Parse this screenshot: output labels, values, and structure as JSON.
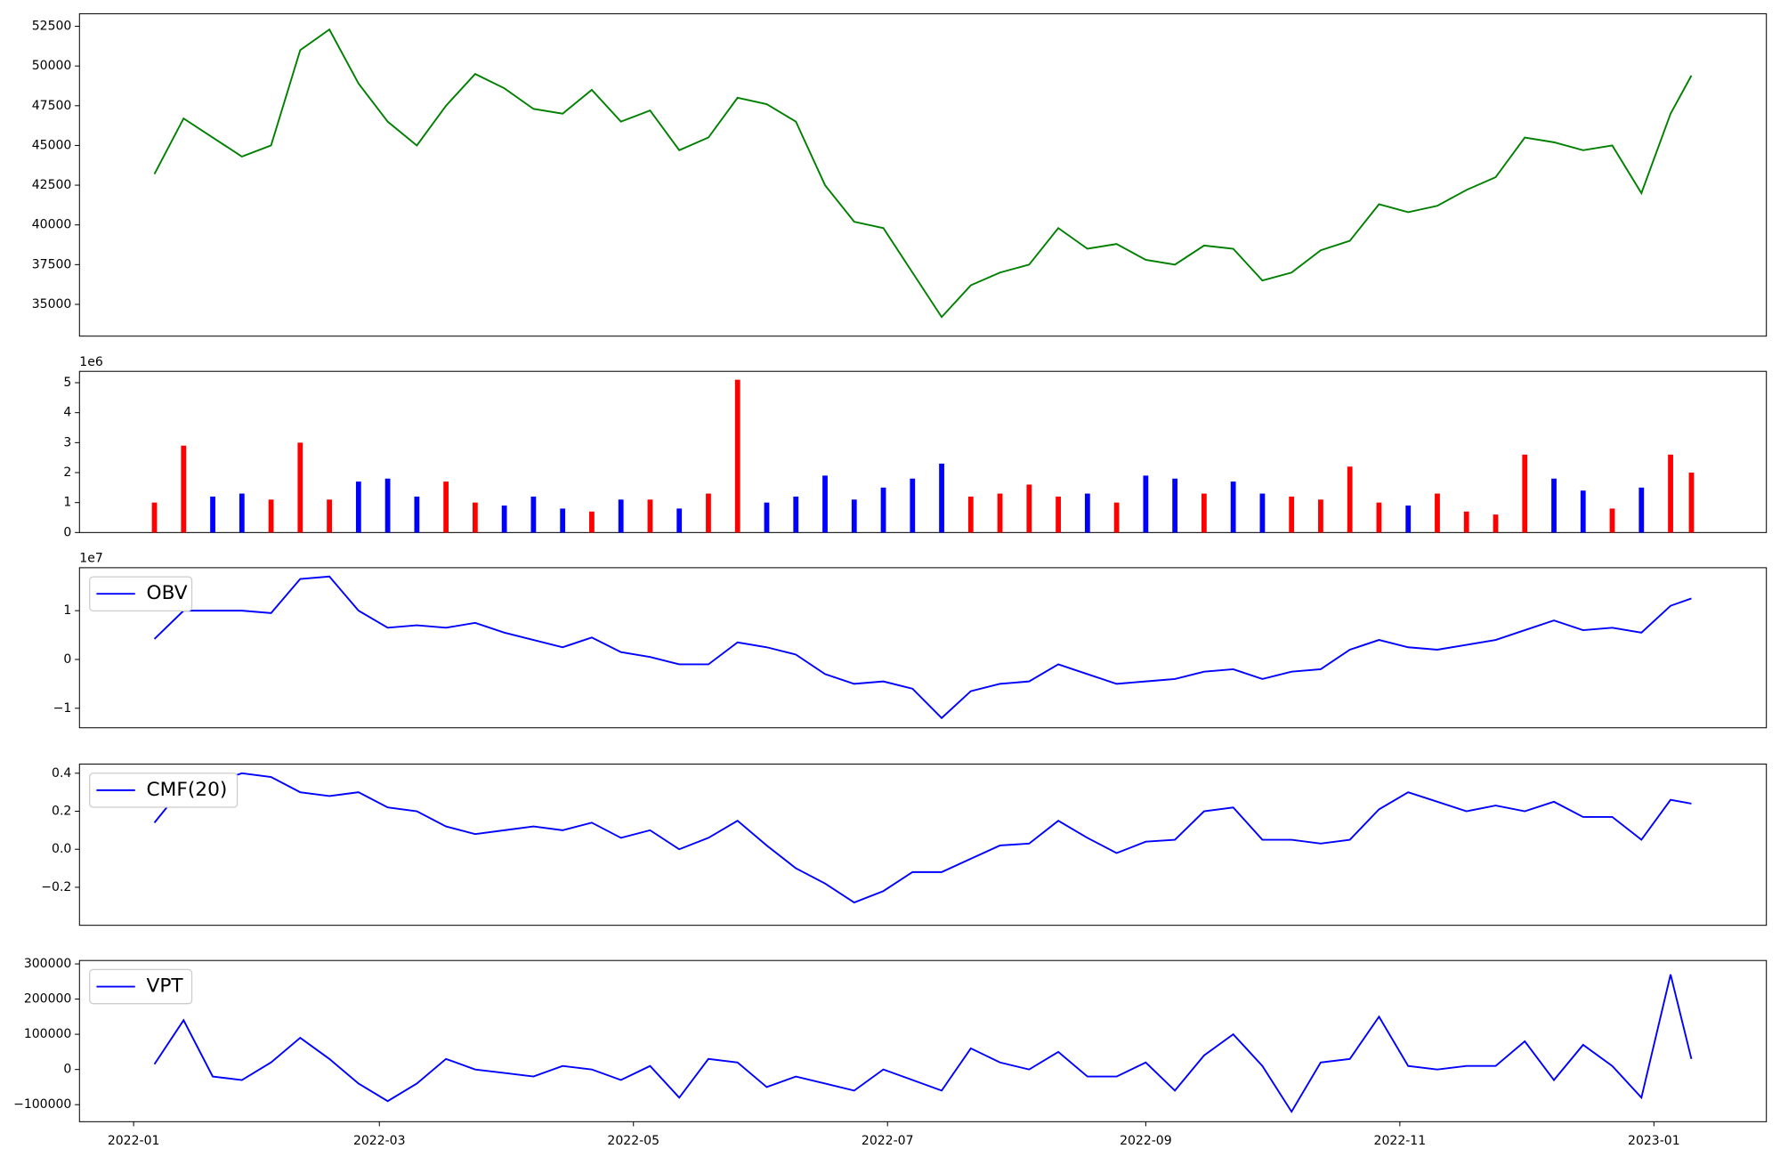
{
  "chart_data": [
    {
      "type": "line",
      "color": "#008000",
      "x": [
        "2022-01-06",
        "2022-01-13",
        "2022-01-20",
        "2022-01-27",
        "2022-02-03",
        "2022-02-10",
        "2022-02-17",
        "2022-02-24",
        "2022-03-03",
        "2022-03-10",
        "2022-03-17",
        "2022-03-24",
        "2022-03-31",
        "2022-04-07",
        "2022-04-14",
        "2022-04-21",
        "2022-04-28",
        "2022-05-05",
        "2022-05-12",
        "2022-05-19",
        "2022-05-26",
        "2022-06-02",
        "2022-06-09",
        "2022-06-16",
        "2022-06-23",
        "2022-06-30",
        "2022-07-07",
        "2022-07-14",
        "2022-07-21",
        "2022-07-28",
        "2022-08-04",
        "2022-08-11",
        "2022-08-18",
        "2022-08-25",
        "2022-09-01",
        "2022-09-08",
        "2022-09-15",
        "2022-09-22",
        "2022-09-29",
        "2022-10-06",
        "2022-10-13",
        "2022-10-20",
        "2022-10-27",
        "2022-11-03",
        "2022-11-10",
        "2022-11-17",
        "2022-11-24",
        "2022-12-01",
        "2022-12-08",
        "2022-12-15",
        "2022-12-22",
        "2022-12-29",
        "2023-01-05",
        "2023-01-10"
      ],
      "values": [
        43200,
        46700,
        45500,
        44300,
        45000,
        51000,
        52300,
        48900,
        46500,
        45000,
        47500,
        49500,
        48600,
        47300,
        47000,
        48500,
        46500,
        47200,
        44700,
        45500,
        48000,
        47600,
        46500,
        42500,
        40200,
        39800,
        37000,
        34200,
        36200,
        37000,
        37500,
        39800,
        38500,
        38800,
        37800,
        37500,
        38700,
        38500,
        36500,
        37000,
        38400,
        39000,
        41300,
        40800,
        41200,
        42200,
        43000,
        45500,
        45200,
        44700,
        45000,
        42000,
        47000,
        49400
      ],
      "xlim": [
        "2021-12-19",
        "2023-01-28"
      ],
      "ylim": [
        33000,
        53290
      ],
      "yticks": [
        35000,
        37500,
        40000,
        42500,
        45000,
        47500,
        50000,
        52500
      ]
    },
    {
      "type": "bar",
      "offset_label": "1e6",
      "x": [
        "2022-01-06",
        "2022-01-13",
        "2022-01-20",
        "2022-01-27",
        "2022-02-03",
        "2022-02-10",
        "2022-02-17",
        "2022-02-24",
        "2022-03-03",
        "2022-03-10",
        "2022-03-17",
        "2022-03-24",
        "2022-03-31",
        "2022-04-07",
        "2022-04-14",
        "2022-04-21",
        "2022-04-28",
        "2022-05-05",
        "2022-05-12",
        "2022-05-19",
        "2022-05-26",
        "2022-06-02",
        "2022-06-09",
        "2022-06-16",
        "2022-06-23",
        "2022-06-30",
        "2022-07-07",
        "2022-07-14",
        "2022-07-21",
        "2022-07-28",
        "2022-08-04",
        "2022-08-11",
        "2022-08-18",
        "2022-08-25",
        "2022-09-01",
        "2022-09-08",
        "2022-09-15",
        "2022-09-22",
        "2022-09-29",
        "2022-10-06",
        "2022-10-13",
        "2022-10-20",
        "2022-10-27",
        "2022-11-03",
        "2022-11-10",
        "2022-11-17",
        "2022-11-24",
        "2022-12-01",
        "2022-12-08",
        "2022-12-15",
        "2022-12-22",
        "2022-12-29",
        "2023-01-05",
        "2023-01-10"
      ],
      "values": [
        1.0,
        2.9,
        1.2,
        1.3,
        1.1,
        3.0,
        1.1,
        1.7,
        1.8,
        1.2,
        1.7,
        1.0,
        0.9,
        1.2,
        0.8,
        0.7,
        1.1,
        1.1,
        0.8,
        1.3,
        5.1,
        1.0,
        1.2,
        1.9,
        1.1,
        1.5,
        1.8,
        2.3,
        1.2,
        1.3,
        1.6,
        1.2,
        1.3,
        1.0,
        1.9,
        1.8,
        1.3,
        1.7,
        1.3,
        1.2,
        1.1,
        2.2,
        1.0,
        0.9,
        1.3,
        0.7,
        0.6,
        2.6,
        1.8,
        1.4,
        0.8,
        1.5,
        2.6,
        2.0
      ],
      "colors": [
        "#ff0000",
        "#ff0000",
        "#0000ff",
        "#0000ff",
        "#ff0000",
        "#ff0000",
        "#ff0000",
        "#0000ff",
        "#0000ff",
        "#0000ff",
        "#ff0000",
        "#ff0000",
        "#0000ff",
        "#0000ff",
        "#0000ff",
        "#ff0000",
        "#0000ff",
        "#ff0000",
        "#0000ff",
        "#ff0000",
        "#ff0000",
        "#0000ff",
        "#0000ff",
        "#0000ff",
        "#0000ff",
        "#0000ff",
        "#0000ff",
        "#0000ff",
        "#ff0000",
        "#ff0000",
        "#ff0000",
        "#ff0000",
        "#0000ff",
        "#ff0000",
        "#0000ff",
        "#0000ff",
        "#ff0000",
        "#0000ff",
        "#0000ff",
        "#ff0000",
        "#ff0000",
        "#ff0000",
        "#ff0000",
        "#0000ff",
        "#ff0000",
        "#ff0000",
        "#ff0000",
        "#ff0000",
        "#0000ff",
        "#0000ff",
        "#ff0000",
        "#0000ff",
        "#ff0000",
        "#ff0000"
      ],
      "xlim": [
        "2021-12-19",
        "2023-01-28"
      ],
      "ylim": [
        0,
        5.38
      ],
      "yticks": [
        0,
        1,
        2,
        3,
        4,
        5
      ]
    },
    {
      "type": "line",
      "offset_label": "1e7",
      "legend": "upper left",
      "x": [
        "2022-01-06",
        "2022-01-13",
        "2022-01-20",
        "2022-01-27",
        "2022-02-03",
        "2022-02-10",
        "2022-02-17",
        "2022-02-24",
        "2022-03-03",
        "2022-03-10",
        "2022-03-17",
        "2022-03-24",
        "2022-03-31",
        "2022-04-07",
        "2022-04-14",
        "2022-04-21",
        "2022-04-28",
        "2022-05-05",
        "2022-05-12",
        "2022-05-19",
        "2022-05-26",
        "2022-06-02",
        "2022-06-09",
        "2022-06-16",
        "2022-06-23",
        "2022-06-30",
        "2022-07-07",
        "2022-07-14",
        "2022-07-21",
        "2022-07-28",
        "2022-08-04",
        "2022-08-11",
        "2022-08-18",
        "2022-08-25",
        "2022-09-01",
        "2022-09-08",
        "2022-09-15",
        "2022-09-22",
        "2022-09-29",
        "2022-10-06",
        "2022-10-13",
        "2022-10-20",
        "2022-10-27",
        "2022-11-03",
        "2022-11-10",
        "2022-11-17",
        "2022-11-24",
        "2022-12-01",
        "2022-12-08",
        "2022-12-15",
        "2022-12-22",
        "2022-12-29",
        "2023-01-05",
        "2023-01-10"
      ],
      "series": [
        {
          "name": "OBV",
          "color": "#0000ff",
          "values": [
            0.42,
            1.0,
            1.0,
            1.0,
            0.95,
            1.65,
            1.7,
            1.0,
            0.65,
            0.7,
            0.65,
            0.75,
            0.55,
            0.4,
            0.25,
            0.45,
            0.15,
            0.05,
            -0.1,
            -0.1,
            0.35,
            0.25,
            0.1,
            -0.3,
            -0.5,
            -0.45,
            -0.6,
            -1.2,
            -0.65,
            -0.5,
            -0.45,
            -0.1,
            -0.3,
            -0.5,
            -0.45,
            -0.4,
            -0.25,
            -0.2,
            -0.4,
            -0.25,
            -0.2,
            0.2,
            0.4,
            0.25,
            0.2,
            0.3,
            0.4,
            0.6,
            0.8,
            0.6,
            0.65,
            0.55,
            1.1,
            1.25
          ]
        }
      ],
      "xlim": [
        "2021-12-19",
        "2023-01-28"
      ],
      "ylim": [
        -1.4,
        1.88
      ],
      "yticks": [
        {
          "value": -1,
          "label": "−1"
        },
        0,
        1
      ]
    },
    {
      "type": "line",
      "legend": "upper left",
      "x": [
        "2022-01-06",
        "2022-01-13",
        "2022-01-20",
        "2022-01-27",
        "2022-02-03",
        "2022-02-10",
        "2022-02-17",
        "2022-02-24",
        "2022-03-03",
        "2022-03-10",
        "2022-03-17",
        "2022-03-24",
        "2022-03-31",
        "2022-04-07",
        "2022-04-14",
        "2022-04-21",
        "2022-04-28",
        "2022-05-05",
        "2022-05-12",
        "2022-05-19",
        "2022-05-26",
        "2022-06-02",
        "2022-06-09",
        "2022-06-16",
        "2022-06-23",
        "2022-06-30",
        "2022-07-07",
        "2022-07-14",
        "2022-07-21",
        "2022-07-28",
        "2022-08-04",
        "2022-08-11",
        "2022-08-18",
        "2022-08-25",
        "2022-09-01",
        "2022-09-08",
        "2022-09-15",
        "2022-09-22",
        "2022-09-29",
        "2022-10-06",
        "2022-10-13",
        "2022-10-20",
        "2022-10-27",
        "2022-11-03",
        "2022-11-10",
        "2022-11-17",
        "2022-11-24",
        "2022-12-01",
        "2022-12-08",
        "2022-12-15",
        "2022-12-22",
        "2022-12-29",
        "2023-01-05",
        "2023-01-10"
      ],
      "series": [
        {
          "name": "CMF(20)",
          "color": "#0000ff",
          "values": [
            0.14,
            0.33,
            0.35,
            0.4,
            0.38,
            0.3,
            0.28,
            0.3,
            0.22,
            0.2,
            0.12,
            0.08,
            0.1,
            0.12,
            0.1,
            0.14,
            0.06,
            0.1,
            0.0,
            0.06,
            0.15,
            0.02,
            -0.1,
            -0.18,
            -0.28,
            -0.22,
            -0.12,
            -0.12,
            -0.05,
            0.02,
            0.03,
            0.15,
            0.06,
            -0.02,
            0.04,
            0.05,
            0.2,
            0.22,
            0.05,
            0.05,
            0.03,
            0.05,
            0.21,
            0.3,
            0.25,
            0.2,
            0.23,
            0.2,
            0.25,
            0.17,
            0.17,
            0.05,
            0.26,
            0.24
          ]
        }
      ],
      "xlim": [
        "2021-12-19",
        "2023-01-28"
      ],
      "ylim": [
        -0.4,
        0.448
      ],
      "yticks": [
        {
          "value": -0.2,
          "label": "−0.2"
        },
        {
          "value": 0,
          "label": "0.0"
        },
        0.2,
        0.4
      ]
    },
    {
      "type": "line",
      "legend": "upper left",
      "x": [
        "2022-01-06",
        "2022-01-13",
        "2022-01-20",
        "2022-01-27",
        "2022-02-03",
        "2022-02-10",
        "2022-02-17",
        "2022-02-24",
        "2022-03-03",
        "2022-03-10",
        "2022-03-17",
        "2022-03-24",
        "2022-03-31",
        "2022-04-07",
        "2022-04-14",
        "2022-04-21",
        "2022-04-28",
        "2022-05-05",
        "2022-05-12",
        "2022-05-19",
        "2022-05-26",
        "2022-06-02",
        "2022-06-09",
        "2022-06-16",
        "2022-06-23",
        "2022-06-30",
        "2022-07-07",
        "2022-07-14",
        "2022-07-21",
        "2022-07-28",
        "2022-08-04",
        "2022-08-11",
        "2022-08-18",
        "2022-08-25",
        "2022-09-01",
        "2022-09-08",
        "2022-09-15",
        "2022-09-22",
        "2022-09-29",
        "2022-10-06",
        "2022-10-13",
        "2022-10-20",
        "2022-10-27",
        "2022-11-03",
        "2022-11-10",
        "2022-11-17",
        "2022-11-24",
        "2022-12-01",
        "2022-12-08",
        "2022-12-15",
        "2022-12-22",
        "2022-12-29",
        "2023-01-05",
        "2023-01-10"
      ],
      "series": [
        {
          "name": "VPT",
          "color": "#0000ff",
          "values": [
            15000,
            140000,
            -20000,
            -30000,
            20000,
            90000,
            30000,
            -40000,
            -90000,
            -40000,
            30000,
            0,
            -10000,
            -20000,
            10000,
            0,
            -30000,
            10000,
            -80000,
            30000,
            20000,
            -50000,
            -20000,
            -40000,
            -60000,
            0,
            -30000,
            -60000,
            60000,
            20000,
            0,
            50000,
            -20000,
            -20000,
            20000,
            -60000,
            40000,
            100000,
            10000,
            -120000,
            20000,
            30000,
            150000,
            10000,
            0,
            10000,
            10000,
            80000,
            -30000,
            70000,
            10000,
            -80000,
            270000,
            30000
          ]
        }
      ],
      "xlim": [
        "2021-12-19",
        "2023-01-28"
      ],
      "ylim": [
        -148400,
        309700
      ],
      "yticks": [
        {
          "value": -100000,
          "label": "−100000"
        },
        0,
        100000,
        200000,
        300000
      ],
      "xticks": [
        {
          "value": "2022-01-01",
          "label": "2022-01"
        },
        {
          "value": "2022-03-01",
          "label": "2022-03"
        },
        {
          "value": "2022-05-01",
          "label": "2022-05"
        },
        {
          "value": "2022-07-01",
          "label": "2022-07"
        },
        {
          "value": "2022-09-01",
          "label": "2022-09"
        },
        {
          "value": "2022-11-01",
          "label": "2022-11"
        },
        {
          "value": "2023-01-01",
          "label": "2023-01"
        }
      ]
    }
  ]
}
